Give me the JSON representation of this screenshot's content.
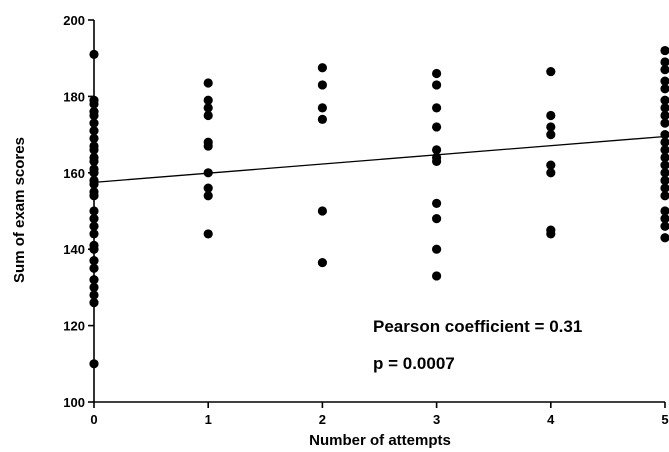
{
  "chart_data": {
    "type": "scatter",
    "title": "",
    "xlabel": "Number of attempts",
    "ylabel": "Sum of exam scores",
    "xlim": [
      0,
      5
    ],
    "ylim": [
      100,
      200
    ],
    "x_ticks": [
      "0",
      "1",
      "2",
      "3",
      "4",
      "5"
    ],
    "y_ticks": [
      "100",
      "120",
      "140",
      "160",
      "180",
      "200"
    ],
    "grid": false,
    "legend": "none",
    "point_color": "#000000",
    "line_color": "#000000",
    "points": [
      [
        0,
        191
      ],
      [
        0,
        179
      ],
      [
        0,
        178
      ],
      [
        0,
        176
      ],
      [
        0,
        175
      ],
      [
        0,
        173
      ],
      [
        0,
        171
      ],
      [
        0,
        169
      ],
      [
        0,
        167
      ],
      [
        0,
        166
      ],
      [
        0,
        164
      ],
      [
        0,
        163
      ],
      [
        0,
        161
      ],
      [
        0,
        160
      ],
      [
        0,
        158
      ],
      [
        0,
        157
      ],
      [
        0,
        155
      ],
      [
        0,
        154
      ],
      [
        0,
        150
      ],
      [
        0,
        148
      ],
      [
        0,
        146
      ],
      [
        0,
        144
      ],
      [
        0,
        141
      ],
      [
        0,
        140
      ],
      [
        0,
        137
      ],
      [
        0,
        135
      ],
      [
        0,
        132
      ],
      [
        0,
        130
      ],
      [
        0,
        128
      ],
      [
        0,
        126
      ],
      [
        0,
        110
      ],
      [
        1,
        183.5
      ],
      [
        1,
        179
      ],
      [
        1,
        177
      ],
      [
        1,
        175
      ],
      [
        1,
        168
      ],
      [
        1,
        167
      ],
      [
        1,
        160
      ],
      [
        1,
        156
      ],
      [
        1,
        154
      ],
      [
        1,
        144
      ],
      [
        2,
        187.5
      ],
      [
        2,
        183
      ],
      [
        2,
        177
      ],
      [
        2,
        174
      ],
      [
        2,
        150
      ],
      [
        2,
        136.5
      ],
      [
        3,
        186
      ],
      [
        3,
        183
      ],
      [
        3,
        177
      ],
      [
        3,
        172
      ],
      [
        3,
        166
      ],
      [
        3,
        164
      ],
      [
        3,
        163
      ],
      [
        3,
        152
      ],
      [
        3,
        148
      ],
      [
        3,
        140
      ],
      [
        3,
        133
      ],
      [
        4,
        186.5
      ],
      [
        4,
        175
      ],
      [
        4,
        172
      ],
      [
        4,
        170
      ],
      [
        4,
        162
      ],
      [
        4,
        160
      ],
      [
        4,
        145
      ],
      [
        4,
        144
      ],
      [
        5,
        192
      ],
      [
        5,
        189
      ],
      [
        5,
        187
      ],
      [
        5,
        184
      ],
      [
        5,
        182
      ],
      [
        5,
        179
      ],
      [
        5,
        177
      ],
      [
        5,
        175
      ],
      [
        5,
        173
      ],
      [
        5,
        170
      ],
      [
        5,
        168
      ],
      [
        5,
        166
      ],
      [
        5,
        164
      ],
      [
        5,
        162
      ],
      [
        5,
        160
      ],
      [
        5,
        158
      ],
      [
        5,
        156
      ],
      [
        5,
        154
      ],
      [
        5,
        150
      ],
      [
        5,
        148
      ],
      [
        5,
        146
      ],
      [
        5,
        143
      ]
    ],
    "regression_line": {
      "x": [
        0,
        5
      ],
      "y": [
        157.5,
        169.5
      ]
    },
    "annotations": [
      "Pearson coefficient = 0.31",
      "p = 0.0007"
    ]
  }
}
